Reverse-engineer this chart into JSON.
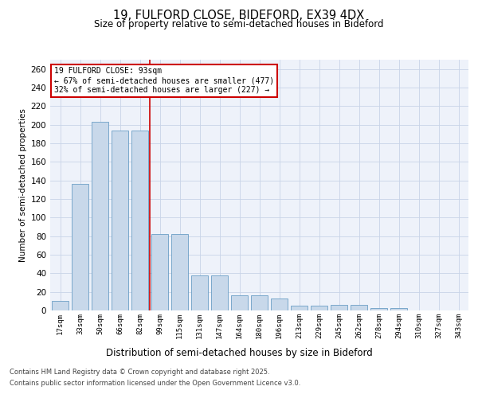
{
  "title_line1": "19, FULFORD CLOSE, BIDEFORD, EX39 4DX",
  "title_line2": "Size of property relative to semi-detached houses in Bideford",
  "xlabel": "Distribution of semi-detached houses by size in Bideford",
  "ylabel": "Number of semi-detached properties",
  "categories": [
    "17sqm",
    "33sqm",
    "50sqm",
    "66sqm",
    "82sqm",
    "99sqm",
    "115sqm",
    "131sqm",
    "147sqm",
    "164sqm",
    "180sqm",
    "196sqm",
    "213sqm",
    "229sqm",
    "245sqm",
    "262sqm",
    "278sqm",
    "294sqm",
    "310sqm",
    "327sqm",
    "343sqm"
  ],
  "values": [
    10,
    136,
    203,
    194,
    194,
    82,
    82,
    38,
    38,
    16,
    16,
    13,
    5,
    5,
    6,
    6,
    3,
    3,
    0,
    0,
    0
  ],
  "bar_color": "#c8d8ea",
  "bar_edge_color": "#6a9ec5",
  "grid_color": "#c8d4e8",
  "background_color": "#eef2fa",
  "vline_x": 4.5,
  "vline_color": "#cc0000",
  "annotation_text": "19 FULFORD CLOSE: 93sqm\n← 67% of semi-detached houses are smaller (477)\n32% of semi-detached houses are larger (227) →",
  "annotation_box_color": "#ffffff",
  "annotation_box_edge": "#cc0000",
  "footer_line1": "Contains HM Land Registry data © Crown copyright and database right 2025.",
  "footer_line2": "Contains public sector information licensed under the Open Government Licence v3.0.",
  "ylim": [
    0,
    270
  ],
  "yticks": [
    0,
    20,
    40,
    60,
    80,
    100,
    120,
    140,
    160,
    180,
    200,
    220,
    240,
    260
  ]
}
